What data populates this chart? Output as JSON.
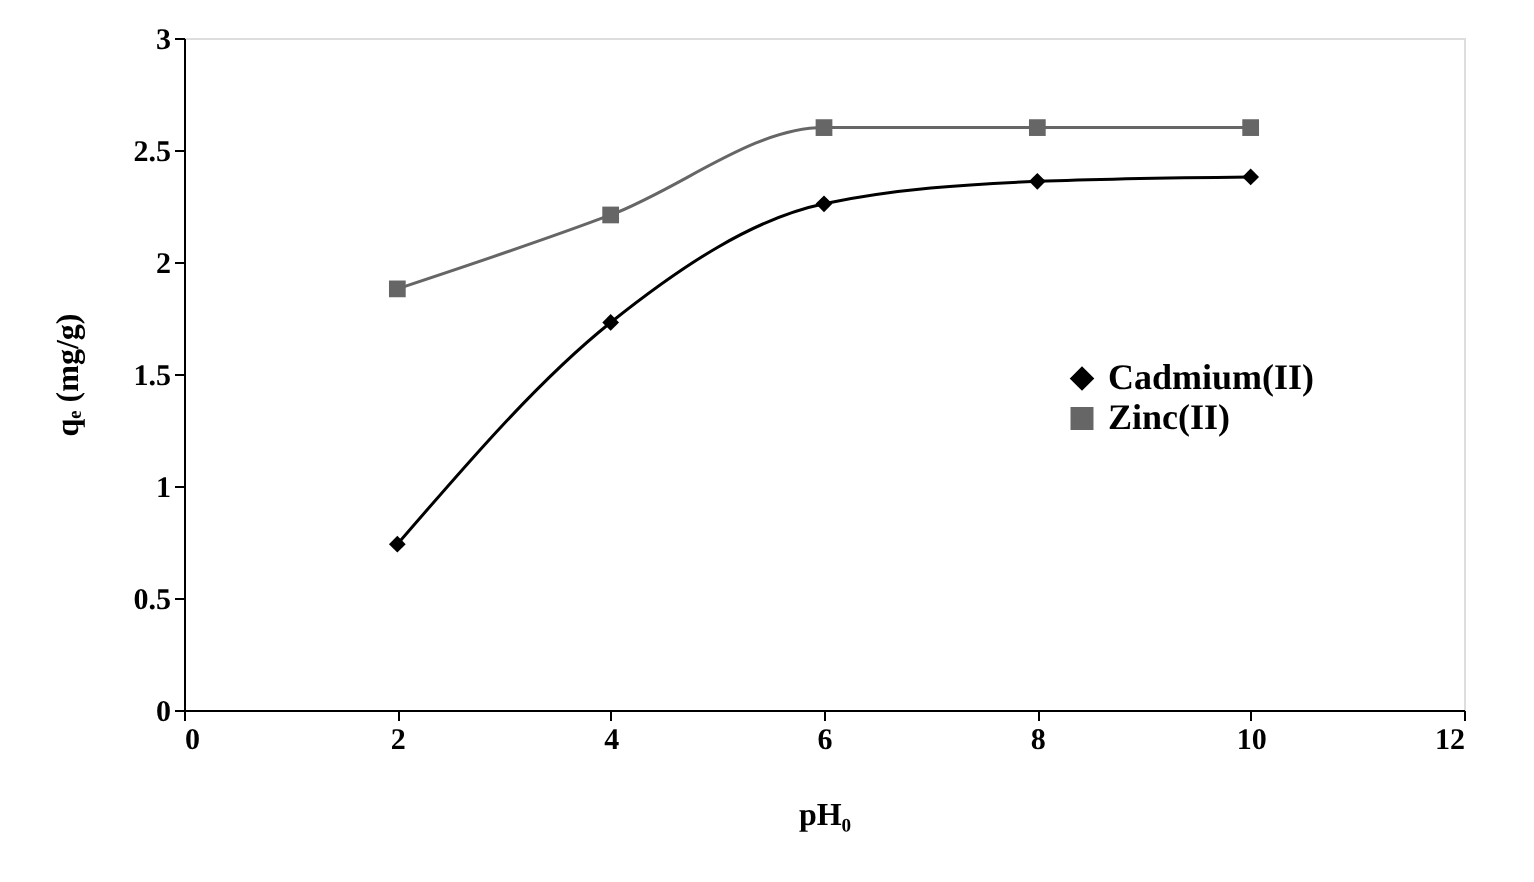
{
  "chart_data": {
    "type": "line",
    "xlabel": "pH₀",
    "ylabel": "qₑ (mg/g)",
    "x": [
      2,
      4,
      6,
      8,
      10
    ],
    "series": [
      {
        "name": "Cadmium(II)",
        "color": "#000000",
        "marker": "diamond",
        "values": [
          0.74,
          1.73,
          2.26,
          2.36,
          2.38
        ]
      },
      {
        "name": "Zinc(II)",
        "color": "#666666",
        "marker": "square",
        "values": [
          1.88,
          2.21,
          2.6,
          2.6,
          2.6
        ]
      }
    ],
    "xlim": [
      0,
      12
    ],
    "xticks": [
      0,
      2,
      4,
      6,
      8,
      10,
      12
    ],
    "ylim": [
      0,
      3
    ],
    "yticks": [
      0,
      0.5,
      1,
      1.5,
      2,
      2.5,
      3
    ],
    "grid": false,
    "legend": "right",
    "line_style": "solid"
  }
}
